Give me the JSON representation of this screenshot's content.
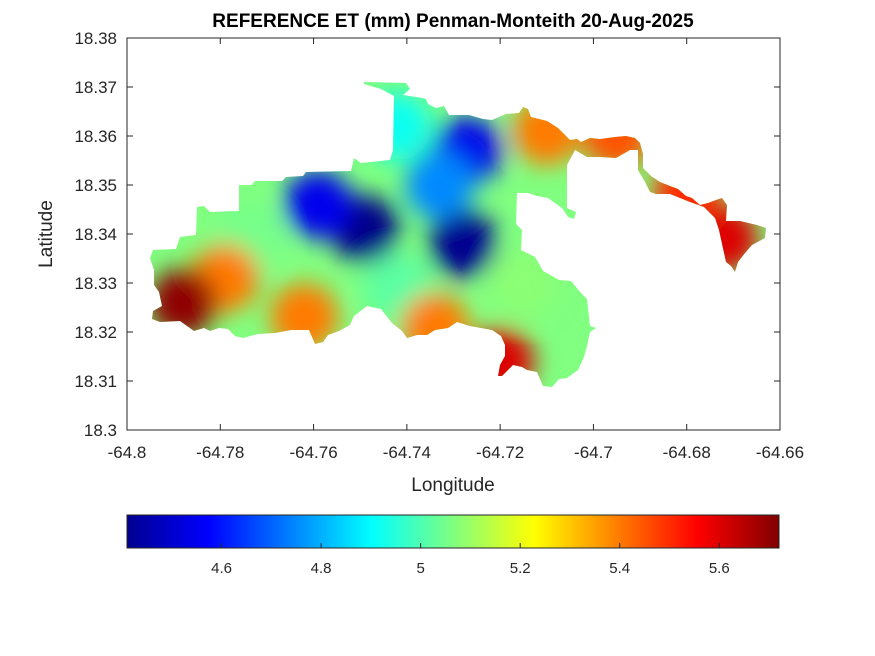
{
  "chart_data": {
    "type": "heatmap",
    "title": "REFERENCE ET (mm) Penman-Monteith 20-Aug-2025",
    "xlabel": "Longitude",
    "ylabel": "Latitude",
    "xlim": [
      -64.8,
      -64.66
    ],
    "ylim": [
      18.3,
      18.38
    ],
    "x_ticks": [
      -64.8,
      -64.78,
      -64.76,
      -64.74,
      -64.72,
      -64.7,
      -64.68,
      -64.66
    ],
    "x_tick_labels": [
      "-64.8",
      "-64.78",
      "-64.76",
      "-64.74",
      "-64.72",
      "-64.7",
      "-64.68",
      "-64.66"
    ],
    "y_ticks": [
      18.3,
      18.31,
      18.32,
      18.33,
      18.34,
      18.35,
      18.36,
      18.37,
      18.38
    ],
    "y_tick_labels": [
      "18.3",
      "18.31",
      "18.32",
      "18.33",
      "18.34",
      "18.35",
      "18.36",
      "18.37",
      "18.38"
    ],
    "colormap": "jet",
    "color_range": [
      4.41,
      5.72
    ],
    "colorbar_ticks": [
      4.6,
      4.8,
      5,
      5.2,
      5.4,
      5.6
    ],
    "colorbar_tick_labels": [
      "4.6",
      "4.8",
      "5",
      "5.2",
      "5.4",
      "5.6"
    ],
    "colorbar_position": "bottom",
    "grid": false,
    "field_regions": [
      {
        "lon": -64.749,
        "lat": 18.341,
        "value": 4.42
      },
      {
        "lon": -64.728,
        "lat": 18.338,
        "value": 4.43
      },
      {
        "lon": -64.727,
        "lat": 18.357,
        "value": 4.55
      },
      {
        "lon": -64.759,
        "lat": 18.346,
        "value": 4.55
      },
      {
        "lon": -64.733,
        "lat": 18.35,
        "value": 4.75
      },
      {
        "lon": -64.742,
        "lat": 18.362,
        "value": 4.92
      },
      {
        "lon": -64.742,
        "lat": 18.329,
        "value": 5.02
      },
      {
        "lon": -64.774,
        "lat": 18.339,
        "value": 5.05
      },
      {
        "lon": -64.715,
        "lat": 18.33,
        "value": 5.08
      },
      {
        "lon": -64.71,
        "lat": 18.361,
        "value": 5.4
      },
      {
        "lon": -64.779,
        "lat": 18.331,
        "value": 5.4
      },
      {
        "lon": -64.762,
        "lat": 18.323,
        "value": 5.4
      },
      {
        "lon": -64.734,
        "lat": 18.321,
        "value": 5.4
      },
      {
        "lon": -64.72,
        "lat": 18.314,
        "value": 5.6
      },
      {
        "lon": -64.788,
        "lat": 18.326,
        "value": 5.7
      },
      {
        "lon": -64.672,
        "lat": 18.339,
        "value": 5.6
      },
      {
        "lon": -64.695,
        "lat": 18.36,
        "value": 5.45
      },
      {
        "lon": -64.68,
        "lat": 18.348,
        "value": 5.5
      }
    ]
  }
}
